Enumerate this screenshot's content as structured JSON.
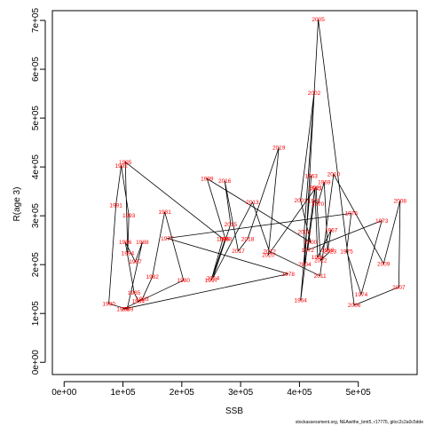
{
  "chart_data": {
    "type": "line",
    "xlabel": "SSB",
    "ylabel": "R(age 3)",
    "xlim": [
      -20000,
      600000
    ],
    "ylim": [
      -25000,
      720000
    ],
    "x_ticks": [
      {
        "value": 0,
        "label": "0e+00"
      },
      {
        "value": 100000,
        "label": "1e+05"
      },
      {
        "value": 200000,
        "label": "2e+05"
      },
      {
        "value": 300000,
        "label": "3e+05"
      },
      {
        "value": 400000,
        "label": "4e+05"
      },
      {
        "value": 500000,
        "label": "5e+05"
      }
    ],
    "y_ticks": [
      {
        "value": 0,
        "label": "0e+00"
      },
      {
        "value": 100000,
        "label": "1e+05"
      },
      {
        "value": 200000,
        "label": "2e+05"
      },
      {
        "value": 300000,
        "label": "3e+05"
      },
      {
        "value": 400000,
        "label": "4e+05"
      },
      {
        "value": 500000,
        "label": "5e+05"
      },
      {
        "value": 600000,
        "label": "6e+05"
      },
      {
        "value": 700000,
        "label": "7e+05"
      }
    ],
    "points": [
      {
        "year": "1963",
        "x": 420000,
        "y": 382000
      },
      {
        "year": "1964",
        "x": 402000,
        "y": 127000
      },
      {
        "year": "1965",
        "x": 426000,
        "y": 356000
      },
      {
        "year": "1966",
        "x": 431000,
        "y": 215000
      },
      {
        "year": "1967",
        "x": 454000,
        "y": 271000
      },
      {
        "year": "1968",
        "x": 448000,
        "y": 230000
      },
      {
        "year": "1969",
        "x": 442000,
        "y": 369000
      },
      {
        "year": "1970",
        "x": 431000,
        "y": 324000
      },
      {
        "year": "1971",
        "x": 425000,
        "y": 331000
      },
      {
        "year": "1972",
        "x": 414000,
        "y": 230000
      },
      {
        "year": "1973",
        "x": 540000,
        "y": 290000
      },
      {
        "year": "1974",
        "x": 505000,
        "y": 139000
      },
      {
        "year": "1975",
        "x": 480000,
        "y": 227000
      },
      {
        "year": "1976",
        "x": 488000,
        "y": 305000
      },
      {
        "year": "1977",
        "x": 175000,
        "y": 254000
      },
      {
        "year": "1978",
        "x": 381000,
        "y": 181000
      },
      {
        "year": "1979",
        "x": 100000,
        "y": 109000
      },
      {
        "year": "1980",
        "x": 203000,
        "y": 168000
      },
      {
        "year": "1981",
        "x": 171000,
        "y": 308000
      },
      {
        "year": "1982",
        "x": 150000,
        "y": 175000
      },
      {
        "year": "1983",
        "x": 133000,
        "y": 130000
      },
      {
        "year": "1984",
        "x": 126000,
        "y": 125000
      },
      {
        "year": "1985",
        "x": 119000,
        "y": 143000
      },
      {
        "year": "1986",
        "x": 104000,
        "y": 246000
      },
      {
        "year": "1987",
        "x": 121000,
        "y": 206000
      },
      {
        "year": "1988",
        "x": 133000,
        "y": 246000
      },
      {
        "year": "1989",
        "x": 107000,
        "y": 109000
      },
      {
        "year": "1990",
        "x": 76000,
        "y": 120000
      },
      {
        "year": "1991",
        "x": 88000,
        "y": 322000
      },
      {
        "year": "1992",
        "x": 97000,
        "y": 403000
      },
      {
        "year": "1993",
        "x": 110000,
        "y": 301000
      },
      {
        "year": "1994",
        "x": 108000,
        "y": 224000
      },
      {
        "year": "1995",
        "x": 104000,
        "y": 410000
      },
      {
        "year": "1996",
        "x": 270000,
        "y": 253000
      },
      {
        "year": "1997",
        "x": 250000,
        "y": 168000
      },
      {
        "year": "1998",
        "x": 274000,
        "y": 253000
      },
      {
        "year": "1999",
        "x": 243000,
        "y": 376000
      },
      {
        "year": "2000",
        "x": 419000,
        "y": 246000
      },
      {
        "year": "2001",
        "x": 402000,
        "y": 332000
      },
      {
        "year": "2002",
        "x": 425000,
        "y": 552000
      },
      {
        "year": "2003",
        "x": 408000,
        "y": 267000
      },
      {
        "year": "2004",
        "x": 409000,
        "y": 201000
      },
      {
        "year": "2005",
        "x": 432000,
        "y": 702000
      },
      {
        "year": "2006",
        "x": 493000,
        "y": 117000
      },
      {
        "year": "2007",
        "x": 569000,
        "y": 154000
      },
      {
        "year": "2008",
        "x": 571000,
        "y": 331000
      },
      {
        "year": "2009",
        "x": 543000,
        "y": 202000
      },
      {
        "year": "2010",
        "x": 458000,
        "y": 385000
      },
      {
        "year": "2011",
        "x": 435000,
        "y": 177000
      },
      {
        "year": "2012",
        "x": 349000,
        "y": 227000
      },
      {
        "year": "2013",
        "x": 320000,
        "y": 328000
      },
      {
        "year": "2014",
        "x": 253000,
        "y": 173000
      },
      {
        "year": "2015",
        "x": 283000,
        "y": 283000
      },
      {
        "year": "2016",
        "x": 273000,
        "y": 372000
      },
      {
        "year": "2017",
        "x": 296000,
        "y": 228000
      },
      {
        "year": "2018",
        "x": 312000,
        "y": 253000
      },
      {
        "year": "2019",
        "x": 365000,
        "y": 440000
      },
      {
        "year": "2020",
        "x": 347000,
        "y": 220000
      },
      {
        "year": "2021",
        "x": 428000,
        "y": 358000
      },
      {
        "year": "2022",
        "x": 436000,
        "y": 209000
      },
      {
        "year": "2023",
        "x": 452000,
        "y": 227000
      }
    ]
  },
  "footer_text": "stockassessment.org, NEAwithe_bmt5, r17775, gitcc2c2a0c5dde"
}
